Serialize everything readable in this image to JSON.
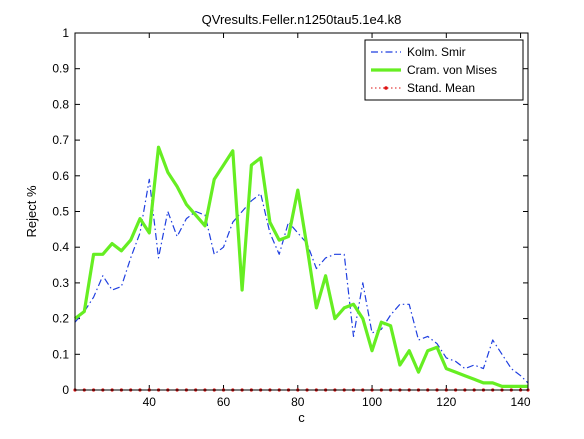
{
  "chart_data": {
    "type": "line",
    "title": "QVresults.Feller.n1250tau5.1e4.k8",
    "xlabel": "c",
    "ylabel": "Reject %",
    "xlim": [
      20,
      142
    ],
    "ylim": [
      0,
      1
    ],
    "xticks": [
      40,
      60,
      80,
      100,
      120,
      140
    ],
    "yticks": [
      0,
      0.1,
      0.2,
      0.3,
      0.4,
      0.5,
      0.6,
      0.7,
      0.8,
      0.9,
      1
    ],
    "grid": false,
    "legend_position": "top-right",
    "x": [
      20,
      22.5,
      25,
      27.5,
      30,
      32.5,
      35,
      37.5,
      40,
      42.5,
      45,
      47.5,
      50,
      52.5,
      55,
      57.5,
      60,
      62.5,
      65,
      67.5,
      70,
      72.5,
      75,
      77.5,
      80,
      82.5,
      85,
      87.5,
      90,
      92.5,
      95,
      97.5,
      100,
      102.5,
      105,
      107.5,
      110,
      112.5,
      115,
      117.5,
      120,
      122.5,
      125,
      127.5,
      130,
      132.5,
      135,
      137.5,
      140,
      142
    ],
    "series": [
      {
        "name": "Kolm. Smir",
        "color": "#1f3fe0",
        "style": "dashdot",
        "values": [
          0.19,
          0.22,
          0.26,
          0.32,
          0.28,
          0.29,
          0.37,
          0.44,
          0.59,
          0.37,
          0.5,
          0.43,
          0.48,
          0.5,
          0.49,
          0.38,
          0.4,
          0.47,
          0.5,
          0.53,
          0.55,
          0.44,
          0.38,
          0.47,
          0.44,
          0.41,
          0.34,
          0.37,
          0.38,
          0.38,
          0.15,
          0.3,
          0.16,
          0.17,
          0.21,
          0.24,
          0.24,
          0.14,
          0.15,
          0.13,
          0.09,
          0.08,
          0.06,
          0.07,
          0.06,
          0.14,
          0.1,
          0.06,
          0.04,
          0.02
        ]
      },
      {
        "name": "Cram. von Mises",
        "color": "#66ee22",
        "style": "solid",
        "values": [
          0.2,
          0.22,
          0.38,
          0.38,
          0.41,
          0.39,
          0.42,
          0.48,
          0.44,
          0.68,
          0.61,
          0.57,
          0.52,
          0.49,
          0.46,
          0.59,
          0.63,
          0.67,
          0.28,
          0.63,
          0.65,
          0.47,
          0.42,
          0.43,
          0.56,
          0.4,
          0.23,
          0.32,
          0.2,
          0.23,
          0.24,
          0.2,
          0.11,
          0.19,
          0.18,
          0.07,
          0.11,
          0.05,
          0.11,
          0.12,
          0.06,
          0.05,
          0.04,
          0.03,
          0.02,
          0.02,
          0.01,
          0.01,
          0.01,
          0.01
        ]
      },
      {
        "name": "Stand. Mean",
        "color": "#dd1111",
        "style": "dotted-markers",
        "values": [
          0,
          0,
          0,
          0,
          0,
          0,
          0,
          0,
          0,
          0,
          0,
          0,
          0,
          0,
          0,
          0,
          0,
          0,
          0,
          0,
          0,
          0,
          0,
          0,
          0,
          0,
          0,
          0,
          0,
          0,
          0,
          0,
          0,
          0,
          0,
          0,
          0,
          0,
          0,
          0,
          0,
          0,
          0,
          0,
          0,
          0,
          0,
          0,
          0,
          0
        ]
      }
    ]
  }
}
